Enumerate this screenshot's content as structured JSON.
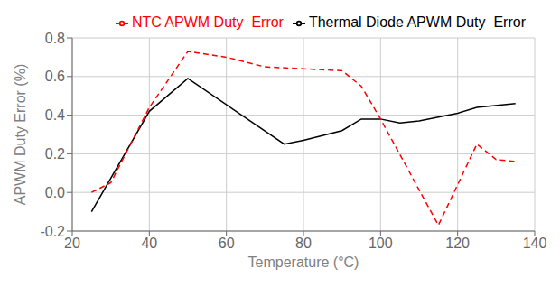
{
  "chart_data": {
    "type": "line",
    "xlabel": "Temperature (°C)",
    "ylabel": "APWM Duty Error (%)",
    "xlim": [
      20,
      140
    ],
    "ylim": [
      -0.2,
      0.8
    ],
    "xticks": [
      20,
      40,
      60,
      80,
      100,
      120,
      140
    ],
    "yticks": [
      -0.2,
      {
        "value": 0,
        "label": "0.0"
      },
      0.2,
      0.4,
      0.6,
      0.8
    ],
    "grid": true,
    "legend": "upper right",
    "series": [
      {
        "name": "Thermal Diode APWM Duty  Error",
        "color": "#000000",
        "line_style": "solid",
        "x": [
          25,
          40,
          50,
          75,
          80,
          90,
          95,
          100,
          105,
          110,
          120,
          125,
          135
        ],
        "values": [
          -0.1,
          0.42,
          0.59,
          0.25,
          0.27,
          0.32,
          0.38,
          0.38,
          0.36,
          0.37,
          0.41,
          0.44,
          0.46
        ]
      },
      {
        "name": "NTC APWM Duty  Error",
        "color": "#ff0000",
        "line_style": "dashed",
        "x": [
          25,
          30,
          40,
          50,
          60,
          70,
          80,
          90,
          95,
          100,
          115,
          125,
          130,
          135
        ],
        "values": [
          0.0,
          0.05,
          0.44,
          0.73,
          0.7,
          0.65,
          0.64,
          0.63,
          0.55,
          0.38,
          -0.17,
          0.25,
          0.17,
          0.16
        ]
      }
    ]
  }
}
